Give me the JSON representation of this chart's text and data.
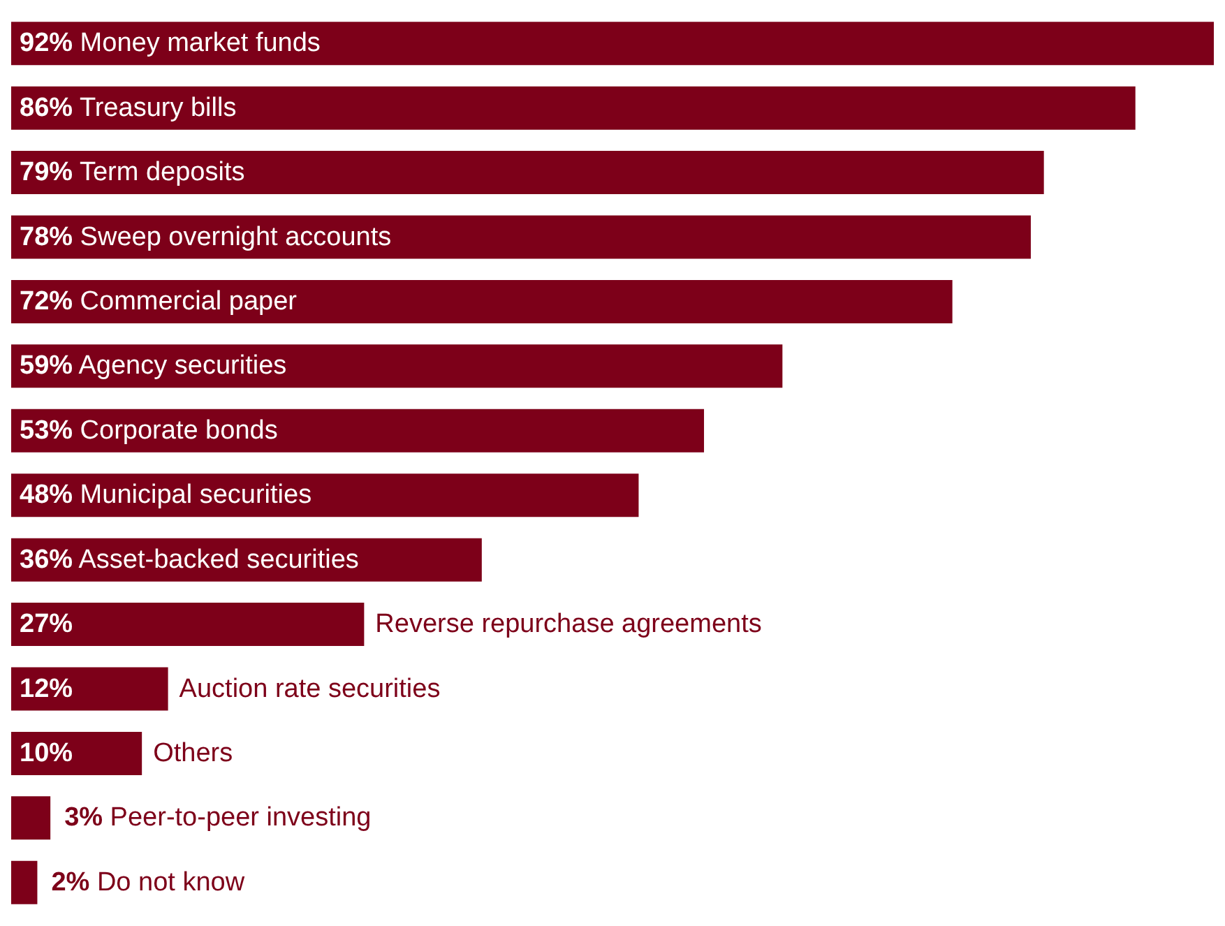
{
  "chart_data": {
    "type": "bar",
    "orientation": "horizontal",
    "color": "#7d0019",
    "categories": [
      "Money market funds",
      "Treasury bills",
      "Term deposits",
      "Sweep overnight accounts",
      "Commercial paper",
      "Agency securities",
      "Corporate bonds",
      "Municipal securities",
      "Asset-backed securities",
      "Reverse repurchase agreements",
      "Auction rate securities",
      "Others",
      "Peer-to-peer investing",
      "Do not know"
    ],
    "values": [
      92,
      86,
      79,
      78,
      72,
      59,
      53,
      48,
      36,
      27,
      12,
      10,
      3,
      2
    ],
    "value_labels": [
      "92%",
      "86%",
      "79%",
      "78%",
      "72%",
      "59%",
      "53%",
      "48%",
      "36%",
      "27%",
      "12%",
      "10%",
      "3%",
      "2%"
    ]
  }
}
